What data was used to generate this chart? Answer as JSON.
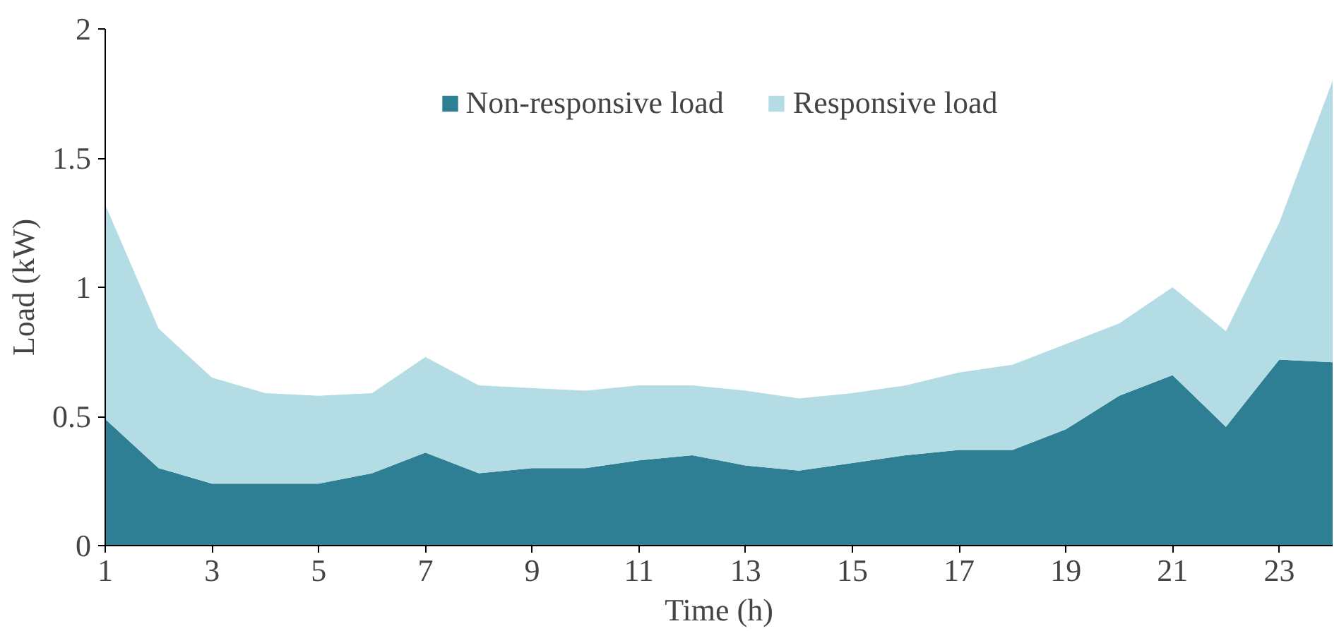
{
  "chart_data": {
    "type": "area",
    "stacked": true,
    "xlabel": "Time (h)",
    "ylabel": "Load (kW)",
    "x": [
      1,
      2,
      3,
      4,
      5,
      6,
      7,
      8,
      9,
      10,
      11,
      12,
      13,
      14,
      15,
      16,
      17,
      18,
      19,
      20,
      21,
      22,
      23,
      24
    ],
    "series": [
      {
        "name": "Non-responsive load",
        "color": "#2e7f93",
        "values": [
          0.49,
          0.3,
          0.24,
          0.24,
          0.24,
          0.28,
          0.36,
          0.28,
          0.3,
          0.3,
          0.33,
          0.35,
          0.31,
          0.29,
          0.32,
          0.35,
          0.37,
          0.37,
          0.45,
          0.58,
          0.66,
          0.46,
          0.72,
          0.71
        ]
      },
      {
        "name": "Responsive load",
        "color": "#b3dce4",
        "values": [
          0.83,
          0.54,
          0.41,
          0.35,
          0.34,
          0.31,
          0.37,
          0.34,
          0.31,
          0.3,
          0.29,
          0.27,
          0.29,
          0.28,
          0.27,
          0.27,
          0.3,
          0.33,
          0.33,
          0.28,
          0.34,
          0.37,
          0.53,
          1.09
        ]
      }
    ],
    "xlim": [
      1,
      24
    ],
    "ylim": [
      0,
      2
    ],
    "xticks": [
      1,
      3,
      5,
      7,
      9,
      11,
      13,
      15,
      17,
      19,
      21,
      23
    ],
    "yticks": [
      0,
      {
        "value": 0.5,
        "label": "0.5"
      },
      1,
      {
        "value": 1.5,
        "label": "1.5"
      },
      2
    ],
    "grid": false,
    "legend": "top"
  }
}
